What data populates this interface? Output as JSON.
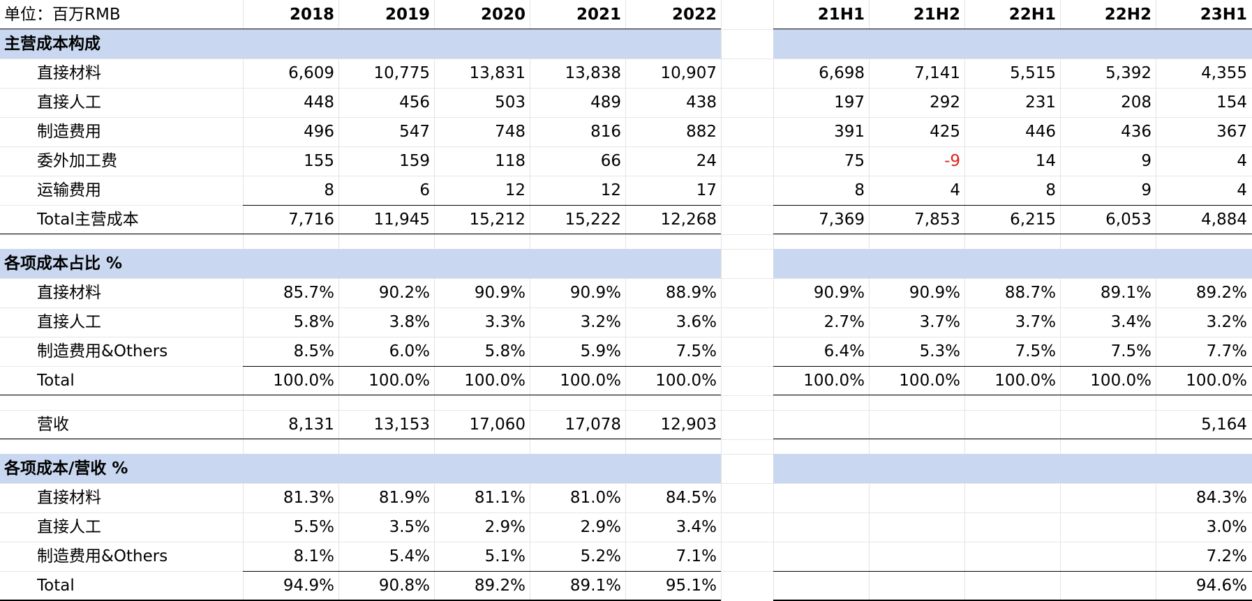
{
  "header": {
    "unit_label": "单位：百万RMB",
    "years": [
      "2018",
      "2019",
      "2020",
      "2021",
      "2022"
    ],
    "halves": [
      "21H1",
      "21H2",
      "22H1",
      "22H2",
      "23H1"
    ]
  },
  "sections": [
    {
      "title": "主营成本构成",
      "rows": [
        {
          "label": "直接材料",
          "years": [
            "6,609",
            "10,775",
            "13,831",
            "13,838",
            "10,907"
          ],
          "halves": [
            "6,698",
            "7,141",
            "5,515",
            "5,392",
            "4,355"
          ]
        },
        {
          "label": "直接人工",
          "years": [
            "448",
            "456",
            "503",
            "489",
            "438"
          ],
          "halves": [
            "197",
            "292",
            "231",
            "208",
            "154"
          ]
        },
        {
          "label": "制造费用",
          "years": [
            "496",
            "547",
            "748",
            "816",
            "882"
          ],
          "halves": [
            "391",
            "425",
            "446",
            "436",
            "367"
          ]
        },
        {
          "label": "委外加工费",
          "years": [
            "155",
            "159",
            "118",
            "66",
            "24"
          ],
          "halves": [
            "75",
            "-9",
            "14",
            "9",
            "4"
          ]
        },
        {
          "label": "运输费用",
          "years": [
            "8",
            "6",
            "12",
            "12",
            "17"
          ],
          "halves": [
            "8",
            "4",
            "8",
            "9",
            "4"
          ]
        }
      ],
      "total": {
        "label": "Total主营成本",
        "years": [
          "7,716",
          "11,945",
          "15,212",
          "15,222",
          "12,268"
        ],
        "halves": [
          "7,369",
          "7,853",
          "6,215",
          "6,053",
          "4,884"
        ]
      }
    },
    {
      "title": "各项成本占比 %",
      "rows": [
        {
          "label": "直接材料",
          "years": [
            "85.7%",
            "90.2%",
            "90.9%",
            "90.9%",
            "88.9%"
          ],
          "halves": [
            "90.9%",
            "90.9%",
            "88.7%",
            "89.1%",
            "89.2%"
          ]
        },
        {
          "label": "直接人工",
          "years": [
            "5.8%",
            "3.8%",
            "3.3%",
            "3.2%",
            "3.6%"
          ],
          "halves": [
            "2.7%",
            "3.7%",
            "3.7%",
            "3.4%",
            "3.2%"
          ]
        },
        {
          "label": "制造费用&Others",
          "years": [
            "8.5%",
            "6.0%",
            "5.8%",
            "5.9%",
            "7.5%"
          ],
          "halves": [
            "6.4%",
            "5.3%",
            "7.5%",
            "7.5%",
            "7.7%"
          ]
        }
      ],
      "total": {
        "label": "Total",
        "years": [
          "100.0%",
          "100.0%",
          "100.0%",
          "100.0%",
          "100.0%"
        ],
        "halves": [
          "100.0%",
          "100.0%",
          "100.0%",
          "100.0%",
          "100.0%"
        ]
      }
    },
    {
      "title": "",
      "rows": [],
      "total": {
        "label": "营收",
        "years": [
          "8,131",
          "13,153",
          "17,060",
          "17,078",
          "12,903"
        ],
        "halves": [
          "",
          "",
          "",
          "",
          "5,164"
        ]
      }
    },
    {
      "title": "各项成本/营收 %",
      "rows": [
        {
          "label": "直接材料",
          "years": [
            "81.3%",
            "81.9%",
            "81.1%",
            "81.0%",
            "84.5%"
          ],
          "halves": [
            "",
            "",
            "",
            "",
            "84.3%"
          ]
        },
        {
          "label": "直接人工",
          "years": [
            "5.5%",
            "3.5%",
            "2.9%",
            "2.9%",
            "3.4%"
          ],
          "halves": [
            "",
            "",
            "",
            "",
            "3.0%"
          ]
        },
        {
          "label": "制造费用&Others",
          "years": [
            "8.1%",
            "5.4%",
            "5.1%",
            "5.2%",
            "7.1%"
          ],
          "halves": [
            "",
            "",
            "",
            "",
            "7.2%"
          ]
        }
      ],
      "total": {
        "label": "Total",
        "years": [
          "94.9%",
          "90.8%",
          "89.2%",
          "89.1%",
          "95.1%"
        ],
        "halves": [
          "",
          "",
          "",
          "",
          "94.6%"
        ]
      }
    }
  ],
  "colors": {
    "band": "#c9d8f0",
    "negative": "#e0231c",
    "grid": "#e3e3e3",
    "text": "#000000"
  }
}
